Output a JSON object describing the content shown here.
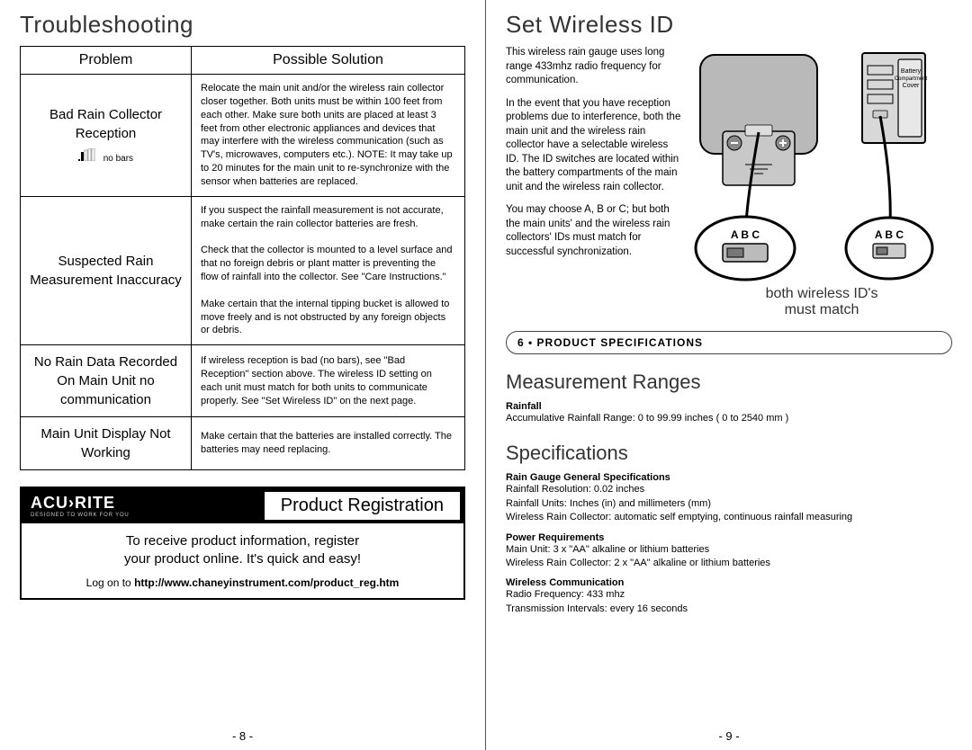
{
  "left": {
    "title": "Troubleshooting",
    "col1": "Problem",
    "col2": "Possible Solution",
    "rows": [
      {
        "problem": "Bad Rain Collector Reception",
        "sub": "no bars",
        "solution": "Relocate the main unit and/or the wireless rain collector closer together. Both units must be within 100 feet from each other. Make sure both units are placed at least 3 feet from other electronic appliances and devices that may interfere with the wireless communication (such as TV's, microwaves, computers etc.). NOTE: It may take up to 20 minutes for the main unit to re-synchronize with the sensor when batteries are replaced."
      },
      {
        "problem": "Suspected Rain Measurement Inaccuracy",
        "solution": "If you suspect the rainfall measurement is not accurate, make certain the rain collector batteries are fresh.\n\nCheck that the collector is mounted to a level surface and that no foreign debris or plant matter is preventing the flow of rainfall into the collector. See \"Care Instructions.\"\n\nMake certain that the internal tipping bucket is allowed to move freely and is not obstructed by any foreign objects or debris."
      },
      {
        "problem": "No Rain Data Recorded On Main Unit no communication",
        "solution": "If wireless reception is bad (no bars), see \"Bad Reception\" section above. The wireless ID setting on each unit must match for both units to communicate properly. See \"Set Wireless ID\" on the next page."
      },
      {
        "problem": "Main Unit Display Not Working",
        "solution": "Make certain that the batteries are installed correctly. The batteries may need replacing."
      }
    ],
    "reg": {
      "brand": "ACU›RITE",
      "tag": "DESIGNED TO WORK FOR YOU",
      "title": "Product Registration",
      "body1": "To receive product information, register",
      "body2": "your product online. It's quick and easy!",
      "url_pre": "Log on to ",
      "url": "http://www.chaneyinstrument.com/product_reg.htm"
    },
    "page": "- 8 -"
  },
  "right": {
    "title": "Set Wireless ID",
    "p1": "This wireless rain gauge uses long range 433mhz radio frequency for communication.",
    "p2": "In the event that you have reception problems due to interference, both the main unit and the wireless rain collector have a selectable wireless ID. The ID switches are located within the battery compartments of the main unit and the wireless rain collector.",
    "p3": "You may choose A, B or C; but both the main units' and the wireless rain collectors' IDs must match for successful synchronization.",
    "diag": {
      "abc": "A B C",
      "batt_label1": "Battery",
      "batt_label2": "Compartment",
      "batt_label3": "Cover",
      "match1": "both wireless ID's",
      "match2": "must match"
    },
    "secbar": "6 • PRODUCT SPECIFICATIONS",
    "ranges_title": "Measurement Ranges",
    "ranges_sub": "Rainfall",
    "ranges_line": "Accumulative Rainfall Range: 0 to 99.99 inches ( 0 to 2540 mm )",
    "specs_title": "Specifications",
    "spec_groups": [
      {
        "h": "Rain Gauge General Specifications",
        "lines": [
          "Rainfall Resolution: 0.02 inches",
          "Rainfall Units: Inches (in) and millimeters (mm)",
          "Wireless Rain Collector: automatic self emptying, continuous rainfall measuring"
        ]
      },
      {
        "h": "Power Requirements",
        "lines": [
          "Main Unit: 3 x \"AA\" alkaline or lithium batteries",
          "Wireless Rain Collector: 2 x \"AA\" alkaline or lithium batteries"
        ]
      },
      {
        "h": "Wireless Communication",
        "lines": [
          "Radio Frequency: 433 mhz",
          "Transmission Intervals: every 16 seconds"
        ]
      }
    ],
    "page": "- 9 -"
  }
}
